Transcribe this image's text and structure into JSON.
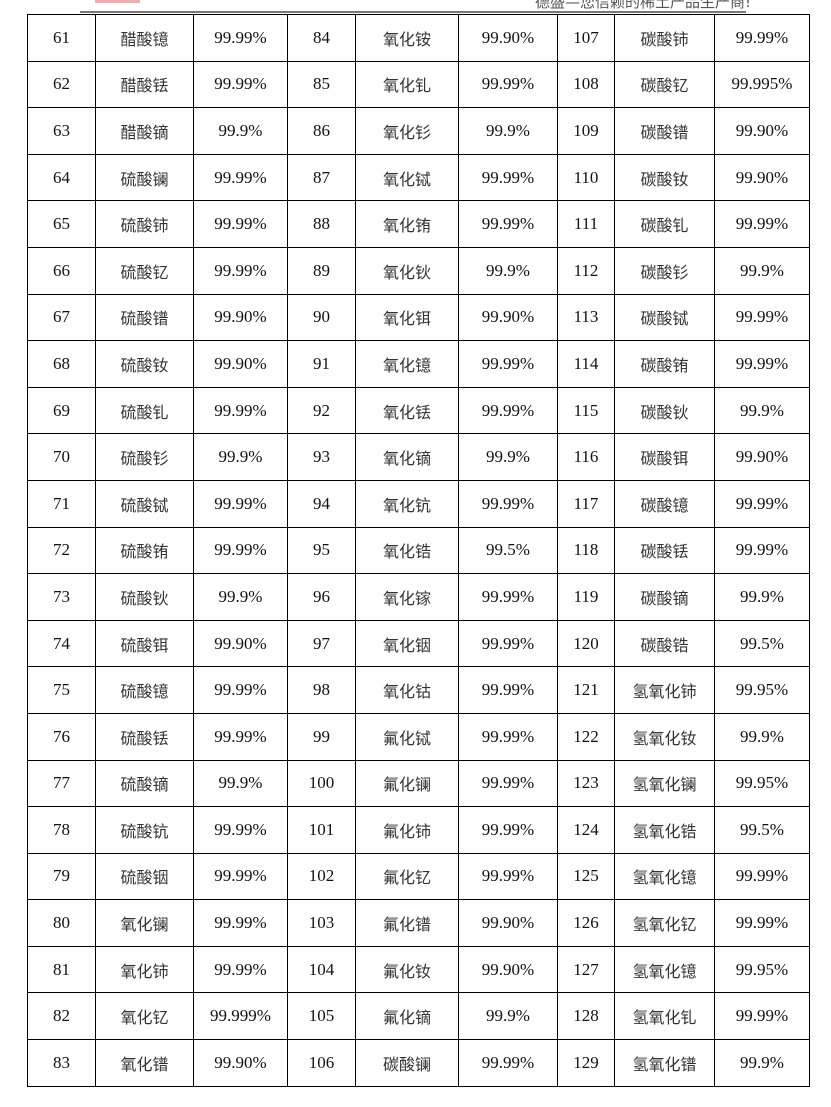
{
  "header": {
    "slogan": "德盛—您信赖的稀土产品生产商!"
  },
  "table": {
    "rows": [
      [
        "61",
        "醋酸镱",
        "99.99%",
        "84",
        "氧化铵",
        "99.90%",
        "107",
        "碳酸铈",
        "99.99%"
      ],
      [
        "62",
        "醋酸铥",
        "99.99%",
        "85",
        "氧化钆",
        "99.99%",
        "108",
        "碳酸钇",
        "99.995%"
      ],
      [
        "63",
        "醋酸镝",
        "99.9%",
        "86",
        "氧化钐",
        "99.9%",
        "109",
        "碳酸镨",
        "99.90%"
      ],
      [
        "64",
        "硫酸镧",
        "99.99%",
        "87",
        "氧化铽",
        "99.99%",
        "110",
        "碳酸钕",
        "99.90%"
      ],
      [
        "65",
        "硫酸铈",
        "99.99%",
        "88",
        "氧化铕",
        "99.99%",
        "111",
        "碳酸钆",
        "99.99%"
      ],
      [
        "66",
        "硫酸钇",
        "99.99%",
        "89",
        "氧化钬",
        "99.9%",
        "112",
        "碳酸钐",
        "99.9%"
      ],
      [
        "67",
        "硫酸镨",
        "99.90%",
        "90",
        "氧化铒",
        "99.90%",
        "113",
        "碳酸铽",
        "99.99%"
      ],
      [
        "68",
        "硫酸钕",
        "99.90%",
        "91",
        "氧化镱",
        "99.99%",
        "114",
        "碳酸铕",
        "99.99%"
      ],
      [
        "69",
        "硫酸钆",
        "99.99%",
        "92",
        "氧化铥",
        "99.99%",
        "115",
        "碳酸钬",
        "99.9%"
      ],
      [
        "70",
        "硫酸钐",
        "99.9%",
        "93",
        "氧化镝",
        "99.9%",
        "116",
        "碳酸铒",
        "99.90%"
      ],
      [
        "71",
        "硫酸铽",
        "99.99%",
        "94",
        "氧化钪",
        "99.99%",
        "117",
        "碳酸镱",
        "99.99%"
      ],
      [
        "72",
        "硫酸铕",
        "99.99%",
        "95",
        "氧化锆",
        "99.5%",
        "118",
        "碳酸铥",
        "99.99%"
      ],
      [
        "73",
        "硫酸钬",
        "99.9%",
        "96",
        "氧化镓",
        "99.99%",
        "119",
        "碳酸镝",
        "99.9%"
      ],
      [
        "74",
        "硫酸铒",
        "99.90%",
        "97",
        "氧化铟",
        "99.99%",
        "120",
        "碳酸锆",
        "99.5%"
      ],
      [
        "75",
        "硫酸镱",
        "99.99%",
        "98",
        "氧化钴",
        "99.99%",
        "121",
        "氢氧化铈",
        "99.95%"
      ],
      [
        "76",
        "硫酸铥",
        "99.99%",
        "99",
        "氟化铽",
        "99.99%",
        "122",
        "氢氧化钕",
        "99.9%"
      ],
      [
        "77",
        "硫酸镝",
        "99.9%",
        "100",
        "氟化镧",
        "99.99%",
        "123",
        "氢氧化镧",
        "99.95%"
      ],
      [
        "78",
        "硫酸钪",
        "99.99%",
        "101",
        "氟化铈",
        "99.99%",
        "124",
        "氢氧化锆",
        "99.5%"
      ],
      [
        "79",
        "硫酸铟",
        "99.99%",
        "102",
        "氟化钇",
        "99.99%",
        "125",
        "氢氧化镱",
        "99.99%"
      ],
      [
        "80",
        "氧化镧",
        "99.99%",
        "103",
        "氟化镨",
        "99.90%",
        "126",
        "氢氧化钇",
        "99.99%"
      ],
      [
        "81",
        "氧化铈",
        "99.99%",
        "104",
        "氟化钕",
        "99.90%",
        "127",
        "氢氧化镱",
        "99.95%"
      ],
      [
        "82",
        "氧化钇",
        "99.999%",
        "105",
        "氟化镝",
        "99.9%",
        "128",
        "氢氧化钆",
        "99.99%"
      ],
      [
        "83",
        "氧化镨",
        "99.90%",
        "106",
        "碳酸镧",
        "99.99%",
        "129",
        "氢氧化镨",
        "99.9%"
      ]
    ]
  }
}
